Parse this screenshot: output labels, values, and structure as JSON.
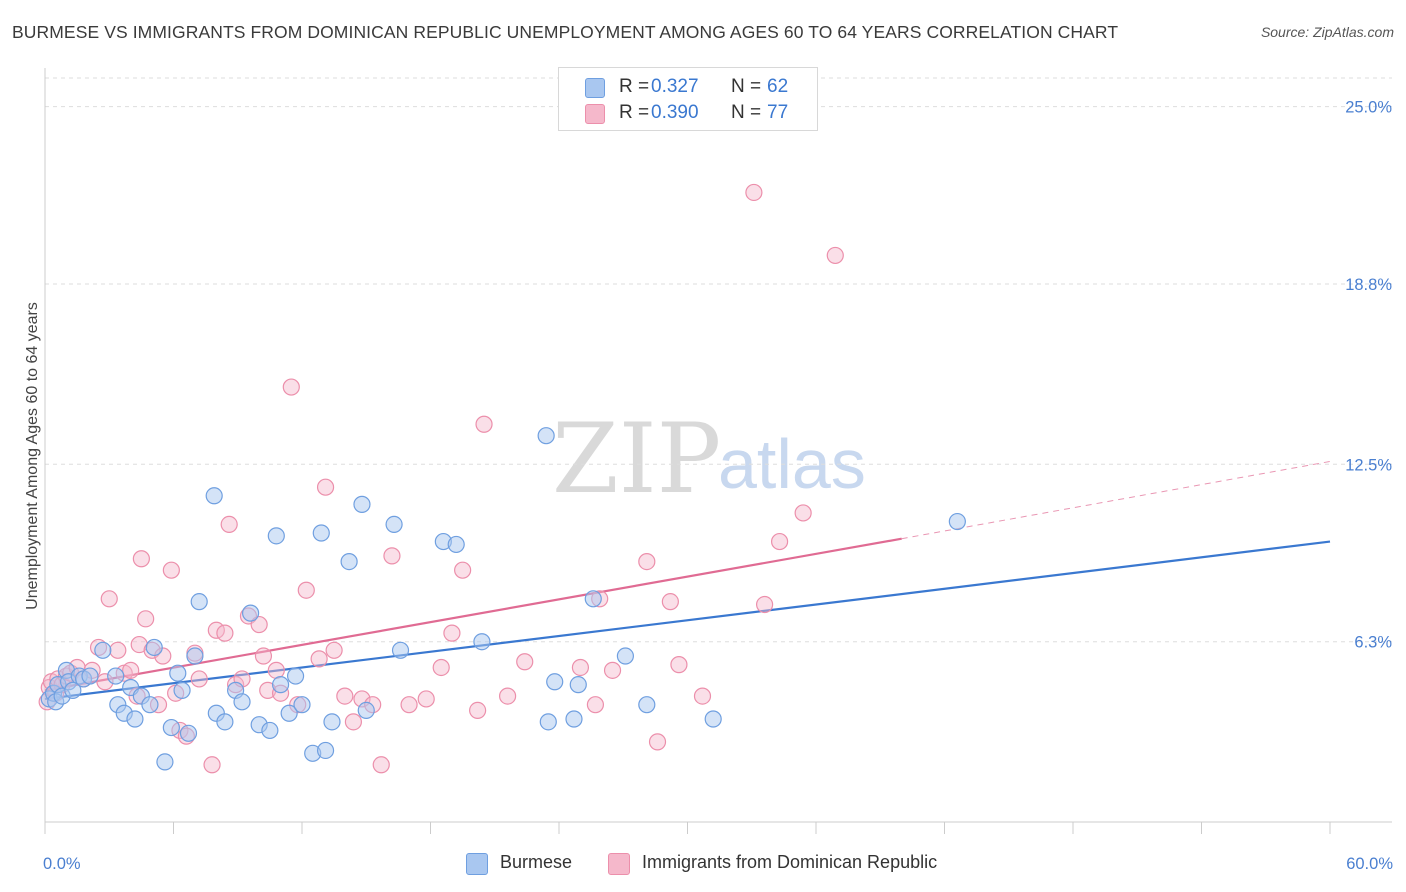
{
  "title": "BURMESE VS IMMIGRANTS FROM DOMINICAN REPUBLIC UNEMPLOYMENT AMONG AGES 60 TO 64 YEARS CORRELATION CHART",
  "source": "Source: ZipAtlas.com",
  "watermark": {
    "zip": "ZIP",
    "atlas": "atlas"
  },
  "legend": {
    "rows": [
      {
        "r_label": "R =",
        "r_value": "0.327",
        "n_label": "N =",
        "n_value": "62",
        "color": "#a9c7f0"
      },
      {
        "r_label": "R =",
        "r_value": "0.390",
        "n_label": "N =",
        "n_value": "77",
        "color": "#f5b8cb"
      }
    ]
  },
  "bottom_legend": {
    "burmese": "Burmese",
    "dominican": "Immigrants from Dominican Republic"
  },
  "colors": {
    "burmese_fill": "#a9c7f0",
    "burmese_stroke": "#6f9fe0",
    "burmese_line": "#3a78d0",
    "dominican_fill": "#f5b8cb",
    "dominican_stroke": "#ec8fab",
    "dominican_line": "#e06b93",
    "tick_text": "#4a7fd0"
  },
  "chart_data": {
    "type": "scatter",
    "title": "BURMESE VS IMMIGRANTS FROM DOMINICAN REPUBLIC UNEMPLOYMENT AMONG AGES 60 TO 64 YEARS CORRELATION CHART",
    "xlabel": "",
    "ylabel": "Unemployment Among Ages 60 to 64 years",
    "xlim": [
      0,
      60
    ],
    "ylim": [
      0,
      26
    ],
    "x_tick_labels": [
      "0.0%",
      "60.0%"
    ],
    "y_ticks": [
      6.3,
      12.5,
      18.8,
      25.0
    ],
    "y_tick_labels": [
      "6.3%",
      "12.5%",
      "18.8%",
      "25.0%"
    ],
    "grid": true,
    "legend_position": "top-center",
    "series": [
      {
        "name": "Burmese",
        "r": 0.327,
        "n": 62,
        "trend": {
          "x": [
            0,
            60
          ],
          "y": [
            4.3,
            9.8
          ],
          "dashed_to": null
        },
        "points": [
          [
            0.2,
            4.3
          ],
          [
            0.4,
            4.5
          ],
          [
            0.5,
            4.2
          ],
          [
            0.6,
            4.8
          ],
          [
            0.8,
            4.4
          ],
          [
            1.0,
            5.3
          ],
          [
            1.1,
            4.9
          ],
          [
            1.3,
            4.6
          ],
          [
            1.6,
            5.1
          ],
          [
            1.8,
            5.0
          ],
          [
            2.1,
            5.1
          ],
          [
            2.7,
            6.0
          ],
          [
            3.3,
            5.1
          ],
          [
            3.4,
            4.1
          ],
          [
            3.7,
            3.8
          ],
          [
            4.0,
            4.7
          ],
          [
            4.2,
            3.6
          ],
          [
            4.5,
            4.4
          ],
          [
            4.9,
            4.1
          ],
          [
            5.1,
            6.1
          ],
          [
            5.6,
            2.1
          ],
          [
            5.9,
            3.3
          ],
          [
            6.2,
            5.2
          ],
          [
            6.4,
            4.6
          ],
          [
            7.0,
            5.8
          ],
          [
            7.2,
            7.7
          ],
          [
            7.9,
            11.4
          ],
          [
            8.0,
            3.8
          ],
          [
            8.4,
            3.5
          ],
          [
            8.9,
            4.6
          ],
          [
            9.2,
            4.2
          ],
          [
            9.6,
            7.3
          ],
          [
            10.0,
            3.4
          ],
          [
            10.5,
            3.2
          ],
          [
            10.8,
            10.0
          ],
          [
            11.0,
            4.8
          ],
          [
            11.4,
            3.8
          ],
          [
            12.0,
            4.1
          ],
          [
            12.5,
            2.4
          ],
          [
            13.1,
            2.5
          ],
          [
            13.4,
            3.5
          ],
          [
            12.9,
            10.1
          ],
          [
            14.2,
            9.1
          ],
          [
            14.8,
            11.1
          ],
          [
            15.0,
            3.9
          ],
          [
            16.3,
            10.4
          ],
          [
            16.6,
            6.0
          ],
          [
            18.6,
            9.8
          ],
          [
            19.2,
            9.7
          ],
          [
            20.4,
            6.3
          ],
          [
            23.4,
            13.5
          ],
          [
            23.5,
            3.5
          ],
          [
            23.8,
            4.9
          ],
          [
            24.7,
            3.6
          ],
          [
            24.9,
            4.8
          ],
          [
            25.6,
            7.8
          ],
          [
            27.1,
            5.8
          ],
          [
            28.1,
            4.1
          ],
          [
            31.2,
            3.6
          ],
          [
            42.6,
            10.5
          ],
          [
            11.7,
            5.1
          ],
          [
            6.7,
            3.1
          ]
        ]
      },
      {
        "name": "Immigrants from Dominican Republic",
        "r": 0.39,
        "n": 77,
        "trend": {
          "x": [
            0,
            40
          ],
          "y": [
            4.6,
            9.9
          ],
          "dashed_to": [
            60,
            12.6
          ]
        },
        "points": [
          [
            0.1,
            4.2
          ],
          [
            0.2,
            4.7
          ],
          [
            0.3,
            4.9
          ],
          [
            0.5,
            4.5
          ],
          [
            0.6,
            5.0
          ],
          [
            0.8,
            4.8
          ],
          [
            1.0,
            5.1
          ],
          [
            1.2,
            5.2
          ],
          [
            1.5,
            5.4
          ],
          [
            1.8,
            5.0
          ],
          [
            2.2,
            5.3
          ],
          [
            2.5,
            6.1
          ],
          [
            2.8,
            4.9
          ],
          [
            3.0,
            7.8
          ],
          [
            3.4,
            6.0
          ],
          [
            3.7,
            5.2
          ],
          [
            4.0,
            5.3
          ],
          [
            4.3,
            4.4
          ],
          [
            4.4,
            6.2
          ],
          [
            4.5,
            9.2
          ],
          [
            4.7,
            7.1
          ],
          [
            5.0,
            6.0
          ],
          [
            5.3,
            4.1
          ],
          [
            5.5,
            5.8
          ],
          [
            5.9,
            8.8
          ],
          [
            6.1,
            4.5
          ],
          [
            6.3,
            3.2
          ],
          [
            6.6,
            3.0
          ],
          [
            7.0,
            5.9
          ],
          [
            7.2,
            5.0
          ],
          [
            7.8,
            2.0
          ],
          [
            8.0,
            6.7
          ],
          [
            8.4,
            6.6
          ],
          [
            8.6,
            10.4
          ],
          [
            8.9,
            4.8
          ],
          [
            9.2,
            5.0
          ],
          [
            9.5,
            7.2
          ],
          [
            10.0,
            6.9
          ],
          [
            10.2,
            5.8
          ],
          [
            10.4,
            4.6
          ],
          [
            10.8,
            5.3
          ],
          [
            11.0,
            4.5
          ],
          [
            11.5,
            15.2
          ],
          [
            11.8,
            4.1
          ],
          [
            12.2,
            8.1
          ],
          [
            12.8,
            5.7
          ],
          [
            13.1,
            11.7
          ],
          [
            13.5,
            6.0
          ],
          [
            14.0,
            4.4
          ],
          [
            14.4,
            3.5
          ],
          [
            14.8,
            4.3
          ],
          [
            15.3,
            4.1
          ],
          [
            15.7,
            2.0
          ],
          [
            16.2,
            9.3
          ],
          [
            17.0,
            4.1
          ],
          [
            17.8,
            4.3
          ],
          [
            18.5,
            5.4
          ],
          [
            19.0,
            6.6
          ],
          [
            19.5,
            8.8
          ],
          [
            20.2,
            3.9
          ],
          [
            20.5,
            13.9
          ],
          [
            21.6,
            4.4
          ],
          [
            22.4,
            5.6
          ],
          [
            25.0,
            5.4
          ],
          [
            25.7,
            4.1
          ],
          [
            25.9,
            7.8
          ],
          [
            26.5,
            5.3
          ],
          [
            28.1,
            9.1
          ],
          [
            28.6,
            2.8
          ],
          [
            29.2,
            7.7
          ],
          [
            29.6,
            5.5
          ],
          [
            30.7,
            4.4
          ],
          [
            33.1,
            22.0
          ],
          [
            33.6,
            7.6
          ],
          [
            34.3,
            9.8
          ],
          [
            35.4,
            10.8
          ],
          [
            36.9,
            19.8
          ]
        ]
      }
    ]
  }
}
